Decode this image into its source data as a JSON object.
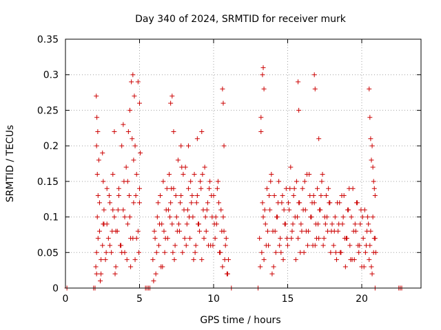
{
  "chart_data": {
    "type": "scatter",
    "title": "Day 340 of 2024, SRMTID for receiver murk",
    "xlabel": "GPS time / hours",
    "ylabel": "SRMTID / TECUs",
    "xlim": [
      0,
      24
    ],
    "ylim": [
      0,
      0.35
    ],
    "xticks": [
      0,
      5,
      10,
      15,
      20
    ],
    "xtick_labels": [
      "0",
      "5",
      "10",
      "15",
      "20"
    ],
    "yticks": [
      0,
      0.05,
      0.1,
      0.15,
      0.2,
      0.25,
      0.3,
      0.35
    ],
    "ytick_labels": [
      "0",
      "0.05",
      "0.1",
      "0.15",
      "0.2",
      "0.25",
      "0.3",
      "0.35"
    ],
    "grid": true,
    "legend": "none",
    "marker": "plus",
    "color": "#cc0000",
    "series": [
      {
        "values_description_omitted": "",
        "x": [
          2.05,
          2.1,
          2.15,
          2.2,
          2.25,
          2.3,
          2.4,
          2.5,
          2.55,
          2.6,
          2.7,
          2.8,
          2.9,
          3.0,
          3.1,
          3.2,
          3.3,
          3.4,
          3.5,
          3.6,
          3.7,
          3.8,
          3.9,
          4.0,
          4.1,
          4.2,
          4.3,
          4.4,
          4.5,
          4.6,
          4.7,
          4.8,
          4.9,
          5.0,
          5.05,
          2.1,
          2.2,
          2.3,
          2.4,
          2.6,
          2.8,
          3.0,
          3.2,
          3.4,
          3.6,
          3.8,
          4.0,
          4.2,
          4.4,
          4.6,
          4.8,
          5.0,
          2.15,
          2.35,
          2.55,
          2.75,
          2.95,
          3.15,
          3.35,
          3.55,
          3.75,
          3.95,
          4.15,
          4.35,
          4.55,
          4.75,
          4.95,
          2.08,
          2.12,
          4.45,
          4.55,
          4.65,
          4.35,
          4.25,
          4.9,
          5.0,
          2.1,
          2.18,
          2.5,
          3.3,
          3.9,
          4.7,
          5.9,
          6.0,
          6.1,
          6.2,
          6.3,
          6.4,
          6.5,
          6.6,
          6.7,
          6.8,
          6.9,
          7.0,
          7.1,
          7.2,
          7.3,
          7.4,
          7.5,
          7.6,
          7.7,
          7.8,
          7.9,
          8.0,
          8.1,
          8.2,
          8.3,
          8.4,
          8.5,
          8.6,
          8.7,
          8.8,
          8.9,
          9.0,
          9.1,
          9.2,
          9.3,
          9.4,
          9.5,
          9.6,
          9.7,
          9.8,
          9.9,
          10.0,
          10.1,
          10.2,
          10.3,
          10.4,
          10.5,
          10.6,
          10.7,
          10.8,
          10.9,
          11.0,
          5.95,
          6.15,
          6.35,
          6.55,
          6.75,
          6.95,
          7.15,
          7.35,
          7.55,
          7.75,
          7.95,
          8.15,
          8.35,
          8.55,
          8.75,
          8.95,
          9.15,
          9.35,
          9.55,
          9.75,
          9.95,
          10.15,
          10.35,
          10.55,
          10.75,
          10.95,
          6.05,
          6.25,
          6.45,
          6.65,
          6.85,
          7.05,
          7.25,
          7.45,
          7.65,
          7.85,
          8.05,
          8.25,
          8.45,
          8.65,
          8.85,
          9.05,
          9.25,
          9.45,
          9.65,
          9.85,
          10.05,
          10.25,
          10.45,
          10.65,
          10.85,
          7.1,
          7.2,
          7.3,
          10.6,
          10.65,
          10.7,
          9.2,
          8.9,
          8.3,
          7.8,
          13.1,
          13.2,
          13.3,
          13.4,
          13.5,
          13.6,
          13.7,
          13.8,
          13.9,
          14.0,
          14.1,
          14.2,
          14.3,
          14.4,
          14.5,
          14.6,
          14.7,
          14.8,
          14.9,
          15.0,
          15.1,
          15.2,
          15.3,
          15.4,
          15.5,
          15.6,
          15.7,
          15.8,
          15.9,
          16.0,
          16.1,
          16.2,
          16.3,
          16.4,
          16.5,
          16.6,
          16.7,
          16.8,
          16.9,
          17.0,
          17.1,
          17.2,
          17.3,
          17.4,
          17.5,
          17.6,
          17.7,
          17.8,
          17.9,
          18.0,
          13.15,
          13.35,
          13.55,
          13.75,
          13.95,
          14.15,
          14.35,
          14.55,
          14.75,
          14.95,
          15.15,
          15.35,
          15.55,
          15.75,
          15.95,
          16.15,
          16.35,
          16.55,
          16.75,
          16.95,
          17.15,
          17.35,
          17.55,
          17.75,
          17.95,
          13.25,
          13.45,
          13.65,
          13.85,
          14.05,
          14.25,
          14.45,
          14.65,
          14.85,
          15.05,
          15.25,
          15.45,
          15.65,
          15.85,
          16.05,
          16.25,
          16.45,
          16.65,
          16.85,
          17.05,
          17.25,
          17.45,
          17.65,
          17.85,
          13.3,
          13.35,
          13.4,
          15.7,
          15.75,
          16.8,
          16.85,
          17.1,
          13.2,
          18.1,
          18.2,
          18.3,
          18.4,
          18.5,
          18.6,
          18.7,
          18.8,
          18.9,
          19.0,
          19.1,
          19.2,
          19.3,
          19.4,
          19.5,
          19.6,
          19.7,
          19.8,
          19.9,
          20.0,
          20.1,
          20.2,
          20.3,
          20.4,
          20.5,
          20.6,
          20.7,
          20.8,
          20.9,
          18.15,
          18.35,
          18.55,
          18.75,
          18.95,
          19.15,
          19.35,
          19.55,
          19.75,
          19.95,
          20.15,
          20.35,
          20.55,
          20.75,
          20.95,
          18.25,
          18.45,
          18.65,
          18.85,
          19.05,
          19.25,
          19.45,
          19.65,
          19.85,
          20.05,
          20.25,
          20.45,
          20.65,
          20.85,
          20.5,
          20.55,
          20.6,
          20.65,
          20.7,
          20.75,
          20.8,
          20.85,
          20.9,
          0.1,
          1.9,
          2.0,
          5.4,
          5.5,
          5.6,
          5.7,
          11.2,
          13.0,
          20.9,
          22.5,
          22.6,
          22.7
        ],
        "y": [
          0.03,
          0.05,
          0.1,
          0.13,
          0.18,
          0.08,
          0.02,
          0.06,
          0.15,
          0.11,
          0.04,
          0.09,
          0.07,
          0.12,
          0.05,
          0.16,
          0.1,
          0.03,
          0.08,
          0.14,
          0.06,
          0.2,
          0.11,
          0.05,
          0.17,
          0.09,
          0.13,
          0.07,
          0.21,
          0.12,
          0.04,
          0.16,
          0.08,
          0.14,
          0.19,
          0.02,
          0.07,
          0.12,
          0.04,
          0.09,
          0.14,
          0.06,
          0.11,
          0.08,
          0.13,
          0.05,
          0.1,
          0.15,
          0.03,
          0.18,
          0.07,
          0.12,
          0.16,
          0.01,
          0.09,
          0.05,
          0.13,
          0.08,
          0.02,
          0.11,
          0.06,
          0.15,
          0.04,
          0.1,
          0.07,
          0.13,
          0.05,
          0.27,
          0.24,
          0.29,
          0.3,
          0.27,
          0.25,
          0.22,
          0.29,
          0.26,
          0.2,
          0.22,
          0.19,
          0.22,
          0.23,
          0.2,
          0.04,
          0.08,
          0.02,
          0.1,
          0.06,
          0.13,
          0.09,
          0.15,
          0.05,
          0.11,
          0.07,
          0.16,
          0.12,
          0.09,
          0.14,
          0.06,
          0.1,
          0.18,
          0.08,
          0.13,
          0.05,
          0.11,
          0.17,
          0.09,
          0.14,
          0.07,
          0.12,
          0.1,
          0.16,
          0.06,
          0.13,
          0.09,
          0.15,
          0.04,
          0.11,
          0.17,
          0.08,
          0.12,
          0.14,
          0.06,
          0.1,
          0.13,
          0.07,
          0.09,
          0.15,
          0.05,
          0.11,
          0.03,
          0.08,
          0.06,
          0.02,
          0.04,
          0.01,
          0.05,
          0.09,
          0.03,
          0.07,
          0.11,
          0.14,
          0.04,
          0.08,
          0.12,
          0.16,
          0.06,
          0.1,
          0.13,
          0.05,
          0.09,
          0.14,
          0.07,
          0.11,
          0.15,
          0.06,
          0.1,
          0.12,
          0.08,
          0.04,
          0.02,
          0.07,
          0.12,
          0.03,
          0.08,
          0.14,
          0.1,
          0.05,
          0.13,
          0.09,
          0.17,
          0.07,
          0.11,
          0.15,
          0.04,
          0.12,
          0.08,
          0.16,
          0.1,
          0.06,
          0.13,
          0.09,
          0.14,
          0.05,
          0.1,
          0.07,
          0.26,
          0.27,
          0.22,
          0.28,
          0.26,
          0.2,
          0.22,
          0.21,
          0.2,
          0.2,
          0.07,
          0.22,
          0.12,
          0.04,
          0.09,
          0.14,
          0.06,
          0.11,
          0.16,
          0.08,
          0.13,
          0.05,
          0.1,
          0.15,
          0.07,
          0.12,
          0.04,
          0.09,
          0.14,
          0.06,
          0.11,
          0.17,
          0.08,
          0.13,
          0.1,
          0.15,
          0.07,
          0.12,
          0.09,
          0.14,
          0.05,
          0.11,
          0.16,
          0.08,
          0.13,
          0.1,
          0.06,
          0.12,
          0.09,
          0.14,
          0.07,
          0.11,
          0.15,
          0.06,
          0.1,
          0.13,
          0.08,
          0.12,
          0.05,
          0.09,
          0.03,
          0.1,
          0.06,
          0.13,
          0.02,
          0.08,
          0.12,
          0.05,
          0.11,
          0.07,
          0.14,
          0.09,
          0.04,
          0.12,
          0.08,
          0.15,
          0.06,
          0.1,
          0.13,
          0.07,
          0.11,
          0.16,
          0.09,
          0.14,
          0.08,
          0.05,
          0.11,
          0.08,
          0.15,
          0.03,
          0.1,
          0.06,
          0.13,
          0.09,
          0.12,
          0.07,
          0.14,
          0.1,
          0.05,
          0.11,
          0.08,
          0.16,
          0.12,
          0.06,
          0.09,
          0.13,
          0.07,
          0.1,
          0.12,
          0.3,
          0.31,
          0.28,
          0.29,
          0.25,
          0.3,
          0.28,
          0.21,
          0.24,
          0.06,
          0.1,
          0.04,
          0.08,
          0.12,
          0.05,
          0.09,
          0.13,
          0.03,
          0.07,
          0.11,
          0.06,
          0.1,
          0.14,
          0.04,
          0.08,
          0.12,
          0.05,
          0.09,
          0.03,
          0.07,
          0.11,
          0.06,
          0.1,
          0.04,
          0.08,
          0.02,
          0.05,
          0.07,
          0.08,
          0.12,
          0.05,
          0.1,
          0.07,
          0.14,
          0.04,
          0.09,
          0.06,
          0.11,
          0.03,
          0.08,
          0.06,
          0.1,
          0.05,
          0.05,
          0.09,
          0.13,
          0.07,
          0.11,
          0.04,
          0.08,
          0.12,
          0.06,
          0.1,
          0.05,
          0.09,
          0.03,
          0.07,
          0.28,
          0.24,
          0.21,
          0.18,
          0.2,
          0.17,
          0.15,
          0.14,
          0.13,
          0,
          0,
          0,
          0,
          0,
          0,
          0,
          0,
          0,
          0,
          0,
          0,
          0
        ]
      }
    ]
  }
}
